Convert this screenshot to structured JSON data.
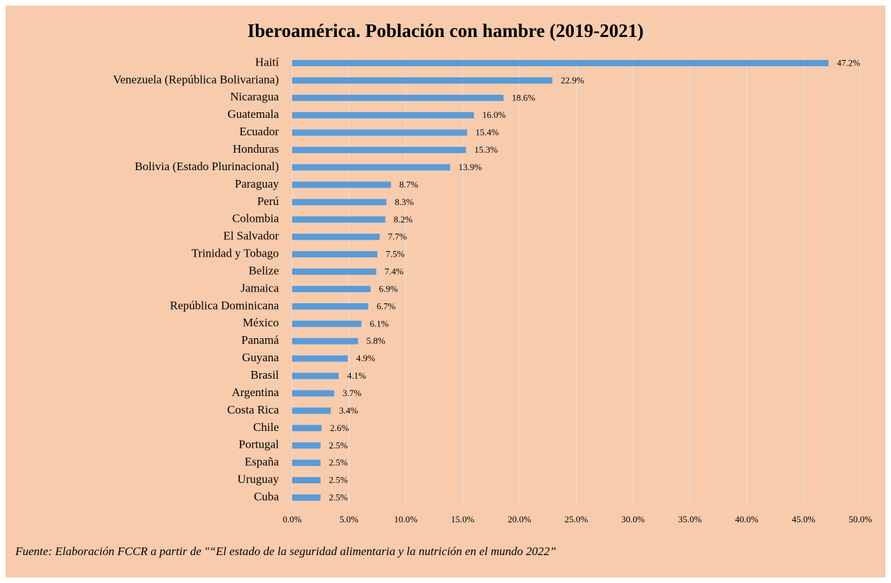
{
  "chart_data": {
    "type": "hbar",
    "title": "Iberoamérica. Población con hambre (2019-2021)",
    "categories": [
      "Haití",
      "Venezuela (República Bolivariana)",
      "Nicaragua",
      "Guatemala",
      "Ecuador",
      "Honduras",
      "Bolivia (Estado Plurinacional)",
      "Paraguay",
      "Perú",
      "Colombia",
      "El Salvador",
      "Trinidad y Tobago",
      "Belize",
      "Jamaica",
      "República Dominicana",
      "México",
      "Panamá",
      "Guyana",
      "Brasil",
      "Argentina",
      "Costa Rica",
      "Chile",
      "Portugal",
      "España",
      "Uruguay",
      "Cuba"
    ],
    "values": [
      47.2,
      22.9,
      18.6,
      16.0,
      15.4,
      15.3,
      13.9,
      8.7,
      8.3,
      8.2,
      7.7,
      7.5,
      7.4,
      6.9,
      6.7,
      6.1,
      5.8,
      4.9,
      4.1,
      3.7,
      3.4,
      2.6,
      2.5,
      2.5,
      2.5,
      2.5
    ],
    "value_labels": [
      "47.2%",
      "22.9%",
      "18.6%",
      "16.0%",
      "15.4%",
      "15.3%",
      "13.9%",
      "8.7%",
      "8.3%",
      "8.2%",
      "7.7%",
      "7.5%",
      "7.4%",
      "6.9%",
      "6.7%",
      "6.1%",
      "5.8%",
      "4.9%",
      "4.1%",
      "3.7%",
      "3.4%",
      "2.6%",
      "2.5%",
      "2.5%",
      "2.5%",
      "2.5%"
    ],
    "color": "#5b9bd5",
    "xlim": [
      0,
      50
    ],
    "xticks": [
      {
        "value": 0,
        "label": "0.0%"
      },
      {
        "value": 5,
        "label": "5.0%"
      },
      {
        "value": 10,
        "label": "10.0%"
      },
      {
        "value": 15,
        "label": "15.0%"
      },
      {
        "value": 20,
        "label": "20.0%"
      },
      {
        "value": 25,
        "label": "25.0%"
      },
      {
        "value": 30,
        "label": "30.0%"
      },
      {
        "value": 35,
        "label": "35.0%"
      },
      {
        "value": 40,
        "label": "40.0%"
      },
      {
        "value": 45,
        "label": "45.0%"
      },
      {
        "value": 50,
        "label": "50.0%"
      }
    ],
    "grid": true,
    "source": "Fuente: Elaboración FCCR a partir de \"“El estado de la seguridad alimentaria y la nutrición en el mundo 2022”"
  }
}
